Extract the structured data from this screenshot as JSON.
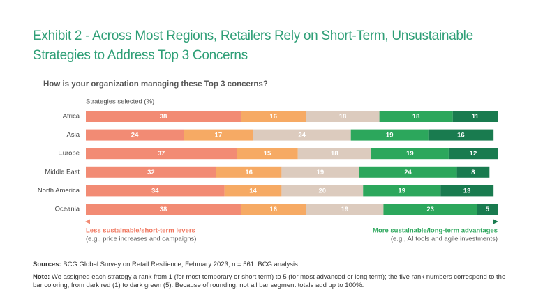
{
  "chart_data": {
    "type": "stacked-barh",
    "title": "Exhibit 2 - Across Most Regions, Retailers Rely on Short-Term, Unsustainable Strategies to Address Top 3 Concerns",
    "subtitle": "How is your organization managing these Top 3 concerns?",
    "axis_label": "Strategies selected (%)",
    "categories": [
      "Africa",
      "Asia",
      "Europe",
      "Middle East",
      "North America",
      "Oceania"
    ],
    "series": [
      {
        "color": "#f28b74",
        "values": [
          38,
          24,
          37,
          32,
          34,
          38
        ]
      },
      {
        "color": "#f6aa64",
        "values": [
          16,
          17,
          15,
          16,
          14,
          16
        ]
      },
      {
        "color": "#dccbbe",
        "values": [
          18,
          24,
          18,
          19,
          20,
          19
        ]
      },
      {
        "color": "#2ca75c",
        "values": [
          18,
          19,
          19,
          24,
          19,
          23
        ]
      },
      {
        "color": "#197b4f",
        "values": [
          11,
          16,
          12,
          8,
          13,
          5
        ]
      }
    ],
    "xlim": [
      0,
      101
    ],
    "left_label": "Less sustainable/short-term levers",
    "left_sublabel": "(e.g., price increases and campaigns)",
    "right_label": "More sustainable/long-term advantages",
    "right_sublabel": "(e.g., AI tools and agile investments)",
    "sources_label": "Sources:",
    "sources_text": "BCG Global Survey on Retail Resilience, February 2023, n = 561; BCG analysis.",
    "note_label": "Note:",
    "note_text": "We assigned each strategy a rank from 1 (for most temporary or short term) to 5 (for most advanced or long term); the five rank numbers correspond to the bar coloring, from dark red (1) to dark green (5). Because of rounding, not all bar segment totals add up to 100%."
  }
}
